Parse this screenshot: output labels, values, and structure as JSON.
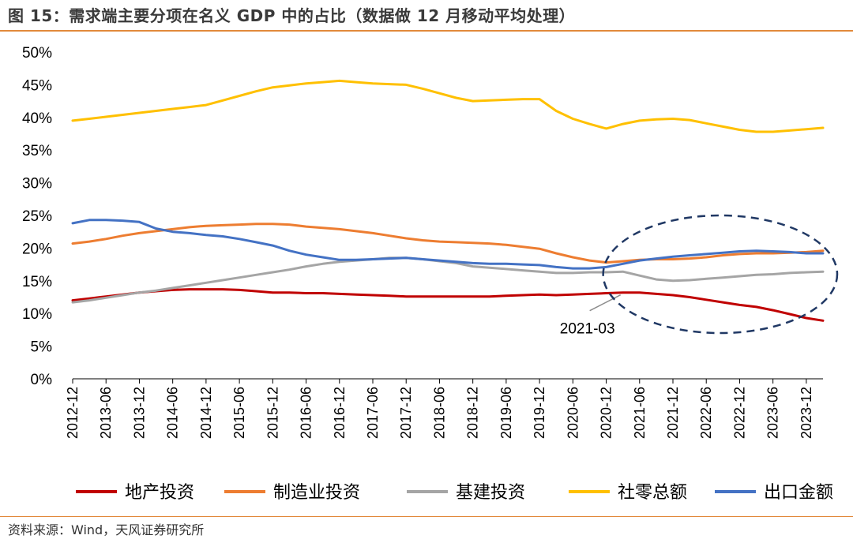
{
  "title": "图 15：需求端主要分项在名义 GDP 中的占比（数据做 12 月移动平均处理）",
  "source": "资料来源：Wind，天风证券研究所",
  "chart_data": {
    "type": "line",
    "title": "图 15：需求端主要分项在名义 GDP 中的占比（数据做 12 月移动平均处理）",
    "xlabel": "",
    "ylabel": "",
    "ylim": [
      0,
      50
    ],
    "y_ticks": [
      "0%",
      "5%",
      "10%",
      "15%",
      "20%",
      "25%",
      "30%",
      "35%",
      "40%",
      "45%",
      "50%"
    ],
    "x_ticks": [
      "2012-12",
      "2013-06",
      "2013-12",
      "2014-06",
      "2014-12",
      "2015-06",
      "2015-12",
      "2016-06",
      "2016-12",
      "2017-06",
      "2017-12",
      "2018-06",
      "2018-12",
      "2019-06",
      "2019-12",
      "2020-06",
      "2020-12",
      "2021-06",
      "2021-12",
      "2022-06",
      "2022-12",
      "2023-06",
      "2023-12"
    ],
    "x": [
      "2012-12",
      "2013-03",
      "2013-06",
      "2013-09",
      "2013-12",
      "2014-03",
      "2014-06",
      "2014-09",
      "2014-12",
      "2015-03",
      "2015-06",
      "2015-09",
      "2015-12",
      "2016-03",
      "2016-06",
      "2016-09",
      "2016-12",
      "2017-03",
      "2017-06",
      "2017-09",
      "2017-12",
      "2018-03",
      "2018-06",
      "2018-09",
      "2018-12",
      "2019-03",
      "2019-06",
      "2019-09",
      "2019-12",
      "2020-03",
      "2020-06",
      "2020-09",
      "2020-12",
      "2021-03",
      "2021-06",
      "2021-09",
      "2021-12",
      "2022-03",
      "2022-06",
      "2022-09",
      "2022-12",
      "2023-03",
      "2023-06",
      "2023-09",
      "2023-12",
      "2024-03"
    ],
    "grid": false,
    "legend_position": "bottom",
    "series": [
      {
        "name": "地产投资",
        "color": "#c00000",
        "values": [
          12.0,
          12.3,
          12.6,
          12.9,
          13.2,
          13.4,
          13.6,
          13.7,
          13.7,
          13.7,
          13.6,
          13.4,
          13.2,
          13.2,
          13.1,
          13.1,
          13.0,
          12.9,
          12.8,
          12.7,
          12.6,
          12.6,
          12.6,
          12.6,
          12.6,
          12.6,
          12.7,
          12.8,
          12.9,
          12.8,
          12.9,
          13.0,
          13.1,
          13.2,
          13.2,
          13.0,
          12.8,
          12.5,
          12.1,
          11.7,
          11.3,
          11.0,
          10.5,
          9.9,
          9.3,
          8.9
        ]
      },
      {
        "name": "制造业投资",
        "color": "#ed7d31",
        "values": [
          20.7,
          21.0,
          21.4,
          21.9,
          22.3,
          22.6,
          22.9,
          23.2,
          23.4,
          23.5,
          23.6,
          23.7,
          23.7,
          23.6,
          23.3,
          23.1,
          22.9,
          22.6,
          22.3,
          21.9,
          21.5,
          21.2,
          21.0,
          20.9,
          20.8,
          20.7,
          20.5,
          20.2,
          19.9,
          19.2,
          18.6,
          18.1,
          17.8,
          18.0,
          18.2,
          18.3,
          18.3,
          18.4,
          18.6,
          18.9,
          19.1,
          19.2,
          19.2,
          19.3,
          19.4,
          19.6
        ]
      },
      {
        "name": "基建投资",
        "color": "#a5a5a5",
        "values": [
          11.7,
          12.0,
          12.4,
          12.8,
          13.2,
          13.5,
          13.9,
          14.3,
          14.7,
          15.1,
          15.5,
          15.9,
          16.3,
          16.7,
          17.2,
          17.6,
          17.9,
          18.1,
          18.3,
          18.5,
          18.5,
          18.3,
          18.0,
          17.7,
          17.2,
          17.0,
          16.8,
          16.6,
          16.4,
          16.2,
          16.2,
          16.3,
          16.3,
          16.4,
          15.8,
          15.2,
          15.0,
          15.1,
          15.3,
          15.5,
          15.7,
          15.9,
          16.0,
          16.2,
          16.3,
          16.4
        ]
      },
      {
        "name": "社零总额",
        "color": "#ffc000",
        "values": [
          39.5,
          39.8,
          40.1,
          40.4,
          40.7,
          41.0,
          41.3,
          41.6,
          41.9,
          42.6,
          43.3,
          44.0,
          44.6,
          44.9,
          45.2,
          45.4,
          45.6,
          45.4,
          45.2,
          45.1,
          45.0,
          44.4,
          43.7,
          43.0,
          42.5,
          42.6,
          42.7,
          42.8,
          42.8,
          41.0,
          39.8,
          39.0,
          38.3,
          39.0,
          39.5,
          39.7,
          39.8,
          39.6,
          39.1,
          38.6,
          38.1,
          37.8,
          37.8,
          38.0,
          38.2,
          38.4
        ]
      },
      {
        "name": "出口金额",
        "color": "#4472c4",
        "values": [
          23.8,
          24.3,
          24.3,
          24.2,
          24.0,
          23.0,
          22.5,
          22.3,
          22.0,
          21.8,
          21.4,
          20.9,
          20.4,
          19.6,
          19.0,
          18.6,
          18.2,
          18.2,
          18.3,
          18.4,
          18.5,
          18.3,
          18.1,
          17.9,
          17.7,
          17.6,
          17.6,
          17.5,
          17.4,
          17.1,
          16.9,
          16.9,
          17.1,
          17.6,
          18.1,
          18.4,
          18.7,
          18.9,
          19.1,
          19.3,
          19.5,
          19.6,
          19.5,
          19.4,
          19.2,
          19.2
        ]
      }
    ],
    "annotations": [
      {
        "text": "2021-03",
        "x": "2021-03",
        "y": 13.2
      },
      {
        "shape": "dashed-ellipse",
        "x_range": [
          "2021-03",
          "2024-03"
        ],
        "y_range": [
          7,
          25
        ]
      }
    ],
    "ellipse_color": "#203864"
  }
}
